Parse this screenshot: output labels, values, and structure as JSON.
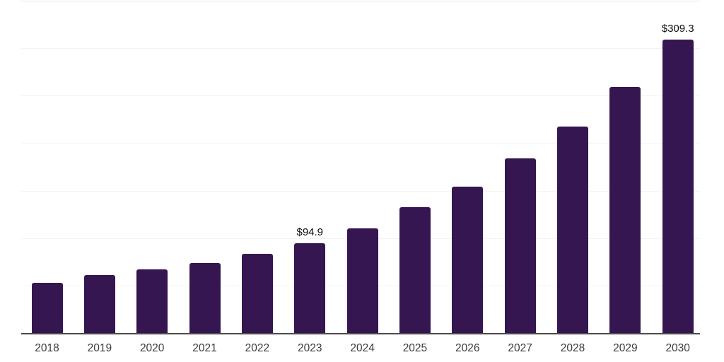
{
  "chart_data": {
    "type": "bar",
    "title": "",
    "xlabel": "",
    "ylabel": "",
    "categories": [
      "2018",
      "2019",
      "2020",
      "2021",
      "2022",
      "2023",
      "2024",
      "2025",
      "2026",
      "2027",
      "2028",
      "2029",
      "2030"
    ],
    "values": [
      53.2,
      61.3,
      66.9,
      73.6,
      83.2,
      94.9,
      110.2,
      132.5,
      153.8,
      184.2,
      217.5,
      259.2,
      309.3
    ],
    "value_labels": [
      null,
      null,
      null,
      null,
      null,
      "$94.9",
      null,
      null,
      null,
      null,
      null,
      null,
      "$309.3"
    ],
    "ylim": [
      0,
      350
    ],
    "gridline_step": 50,
    "grid": true,
    "legend": false,
    "y_axis_tick_labels_visible": false,
    "colors": {
      "bar": "#351650",
      "axis_line": "#4d4d4d",
      "gridline": "#f3f3f5",
      "top_gridline": "#e8e8ea",
      "tick_label": "#3c3c3c",
      "data_label": "#0d0d0d",
      "background": "#ffffff"
    }
  }
}
